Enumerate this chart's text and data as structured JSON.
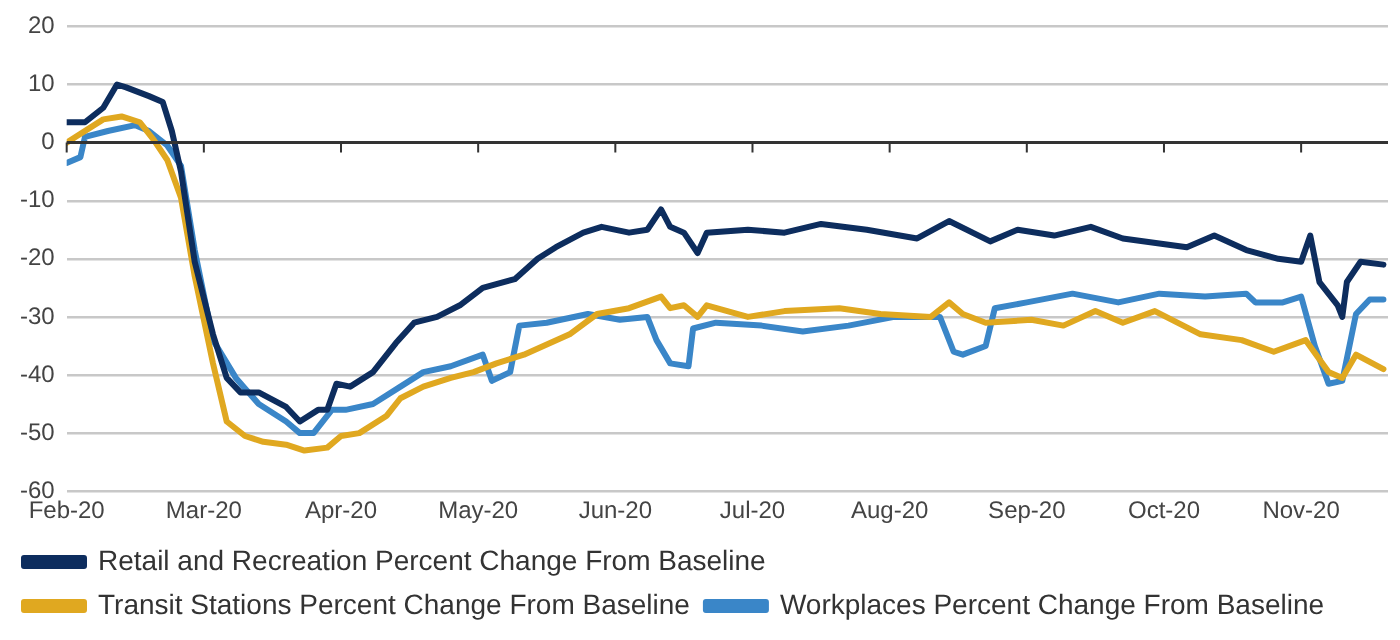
{
  "chart_data": {
    "type": "line",
    "xlim": [
      "2020-02-15",
      "2020-11-30"
    ],
    "xticks": [
      {
        "value": "2020-02-15",
        "label": "Feb-20"
      },
      {
        "value": "2020-03-16",
        "label": "Mar-20"
      },
      {
        "value": "2020-04-15",
        "label": "Apr-20"
      },
      {
        "value": "2020-05-15",
        "label": "May-20"
      },
      {
        "value": "2020-06-14",
        "label": "Jun-20"
      },
      {
        "value": "2020-07-14",
        "label": "Jul-20"
      },
      {
        "value": "2020-08-13",
        "label": "Aug-20"
      },
      {
        "value": "2020-09-12",
        "label": "Sep-20"
      },
      {
        "value": "2020-10-12",
        "label": "Oct-20"
      },
      {
        "value": "2020-11-11",
        "label": "Nov-20"
      }
    ],
    "ylim": [
      -60,
      20
    ],
    "yticks": [
      -60,
      -50,
      -40,
      -30,
      -20,
      -10,
      0,
      10,
      20
    ],
    "grid": "y",
    "legend": "bottom",
    "marker": "none",
    "line_style": "solid",
    "series": [
      {
        "name": "Retail and Recreation Percent Change From Baseline",
        "color": "#0d2d5e",
        "x": [
          "2020-02-15",
          "2020-02-19",
          "2020-02-23",
          "2020-02-26",
          "2020-02-28",
          "2020-03-04",
          "2020-03-07",
          "2020-03-09",
          "2020-03-11",
          "2020-03-14",
          "2020-03-18",
          "2020-03-21",
          "2020-03-24",
          "2020-03-28",
          "2020-04-03",
          "2020-04-06",
          "2020-04-10",
          "2020-04-12",
          "2020-04-14",
          "2020-04-17",
          "2020-04-22",
          "2020-04-27",
          "2020-05-01",
          "2020-05-06",
          "2020-05-11",
          "2020-05-16",
          "2020-05-23",
          "2020-05-28",
          "2020-06-01",
          "2020-06-07",
          "2020-06-11",
          "2020-06-17",
          "2020-06-21",
          "2020-06-24",
          "2020-06-26",
          "2020-06-29",
          "2020-07-02",
          "2020-07-04",
          "2020-07-13",
          "2020-07-21",
          "2020-07-29",
          "2020-08-08",
          "2020-08-19",
          "2020-08-26",
          "2020-09-04",
          "2020-09-10",
          "2020-09-18",
          "2020-09-26",
          "2020-10-03",
          "2020-10-17",
          "2020-10-23",
          "2020-10-30",
          "2020-11-06",
          "2020-11-11",
          "2020-11-13",
          "2020-11-15",
          "2020-11-19",
          "2020-11-20",
          "2020-11-21",
          "2020-11-24",
          "2020-11-29"
        ],
        "values": [
          3.5,
          3.5,
          6,
          10,
          9.5,
          8,
          7,
          2,
          -5,
          -20.5,
          -33,
          -40.5,
          -43,
          -43,
          -45.5,
          -48,
          -46,
          -46,
          -41.5,
          -42,
          -39.5,
          -34.5,
          -31,
          -30,
          -28,
          -25,
          -23.5,
          -20,
          -18,
          -15.5,
          -14.5,
          -15.5,
          -15,
          -11.5,
          -14.5,
          -15.5,
          -19,
          -15.5,
          -15,
          -15.5,
          -14,
          -15,
          -16.5,
          -13.5,
          -17,
          -15,
          -16,
          -14.5,
          -16.5,
          -18,
          -16,
          -18.5,
          -20,
          -20.5,
          -16,
          -24,
          -28,
          -30,
          -24,
          -20.5,
          -21
        ]
      },
      {
        "name": "Transit Stations Percent Change From Baseline",
        "color": "#e0a820",
        "x": [
          "2020-02-15",
          "2020-02-17",
          "2020-02-23",
          "2020-02-27",
          "2020-03-02",
          "2020-03-05",
          "2020-03-08",
          "2020-03-11",
          "2020-03-14",
          "2020-03-18",
          "2020-03-21",
          "2020-03-25",
          "2020-03-29",
          "2020-04-03",
          "2020-04-07",
          "2020-04-12",
          "2020-04-15",
          "2020-04-19",
          "2020-04-25",
          "2020-04-28",
          "2020-05-03",
          "2020-05-09",
          "2020-05-14",
          "2020-05-19",
          "2020-05-25",
          "2020-06-04",
          "2020-06-10",
          "2020-06-17",
          "2020-06-24",
          "2020-06-26",
          "2020-06-29",
          "2020-07-02",
          "2020-07-04",
          "2020-07-13",
          "2020-07-21",
          "2020-08-02",
          "2020-08-11",
          "2020-08-22",
          "2020-08-26",
          "2020-08-29",
          "2020-09-03",
          "2020-09-13",
          "2020-09-20",
          "2020-09-27",
          "2020-10-03",
          "2020-10-10",
          "2020-10-20",
          "2020-10-29",
          "2020-11-05",
          "2020-11-12",
          "2020-11-17",
          "2020-11-20",
          "2020-11-23",
          "2020-11-29"
        ],
        "values": [
          0,
          1,
          4,
          4.5,
          3.5,
          0.5,
          -3,
          -9.5,
          -23,
          -38,
          -48,
          -50.5,
          -51.5,
          -52,
          -53,
          -52.5,
          -50.5,
          -50,
          -47,
          -44,
          -42,
          -40.5,
          -39.5,
          -38,
          -36.5,
          -33,
          -29.5,
          -28.5,
          -26.5,
          -28.5,
          -28,
          -30,
          -28,
          -30,
          -29,
          -28.5,
          -29.5,
          -30,
          -27.5,
          -29.5,
          -31,
          -30.5,
          -31.5,
          -29,
          -31,
          -29,
          -33,
          -34,
          -36,
          -34,
          -39.5,
          -40.5,
          -36.5,
          -39
        ]
      },
      {
        "name": "Workplaces Percent Change From Baseline",
        "color": "#3a86c8",
        "x": [
          "2020-02-15",
          "2020-02-18",
          "2020-02-19",
          "2020-02-24",
          "2020-03-01",
          "2020-03-04",
          "2020-03-08",
          "2020-03-11",
          "2020-03-14",
          "2020-03-18",
          "2020-03-23",
          "2020-03-28",
          "2020-04-03",
          "2020-04-06",
          "2020-04-09",
          "2020-04-13",
          "2020-04-16",
          "2020-04-22",
          "2020-04-28",
          "2020-05-03",
          "2020-05-09",
          "2020-05-16",
          "2020-05-18",
          "2020-05-22",
          "2020-05-24",
          "2020-05-30",
          "2020-06-08",
          "2020-06-15",
          "2020-06-21",
          "2020-06-23",
          "2020-06-26",
          "2020-06-30",
          "2020-07-01",
          "2020-07-06",
          "2020-07-16",
          "2020-07-25",
          "2020-08-04",
          "2020-08-14",
          "2020-08-24",
          "2020-08-27",
          "2020-08-29",
          "2020-09-03",
          "2020-09-05",
          "2020-09-12",
          "2020-09-22",
          "2020-10-02",
          "2020-10-11",
          "2020-10-21",
          "2020-10-30",
          "2020-11-01",
          "2020-11-07",
          "2020-11-11",
          "2020-11-14",
          "2020-11-17",
          "2020-11-20",
          "2020-11-23",
          "2020-11-26",
          "2020-11-29"
        ],
        "values": [
          -3.5,
          -2.5,
          1,
          2,
          3,
          2,
          -0.5,
          -4,
          -18.5,
          -34,
          -40.5,
          -45,
          -48,
          -50,
          -50,
          -46,
          -46,
          -45,
          -42,
          -39.5,
          -38.5,
          -36.5,
          -41,
          -39.5,
          -31.5,
          -31,
          -29.5,
          -30.5,
          -30,
          -34,
          -38,
          -38.5,
          -32,
          -31,
          -31.5,
          -32.5,
          -31.5,
          -30,
          -30,
          -36,
          -36.5,
          -35,
          -28.5,
          -27.5,
          -26,
          -27.5,
          -26,
          -26.5,
          -26,
          -27.5,
          -27.5,
          -26.5,
          -35,
          -41.5,
          -41,
          -29.5,
          -27,
          -27
        ]
      }
    ]
  }
}
